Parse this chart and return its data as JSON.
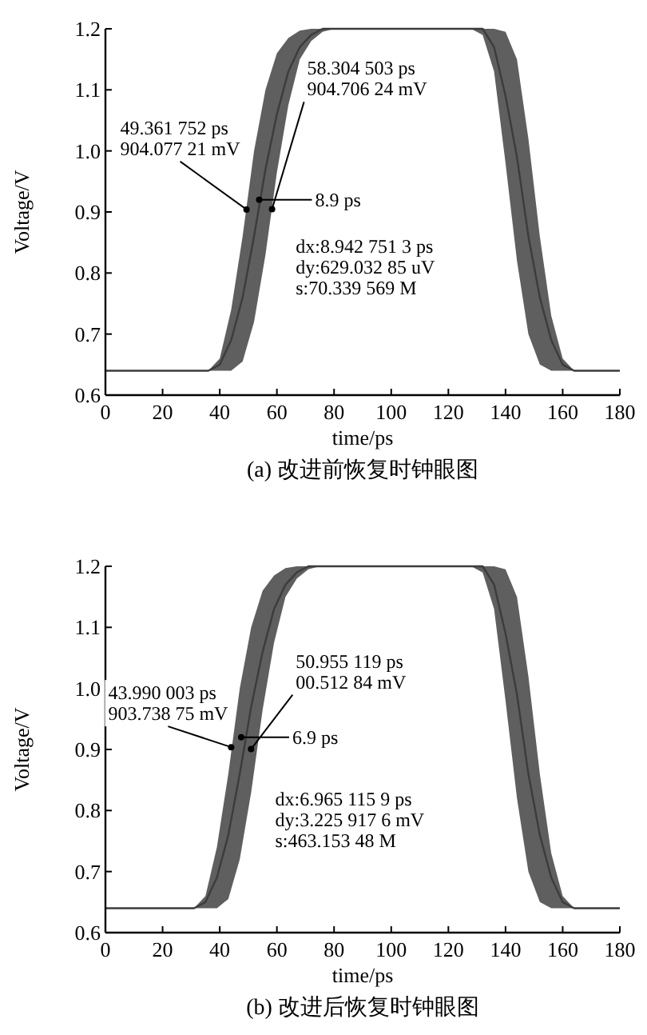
{
  "chart_data": [
    {
      "type": "line",
      "title": "(a) 改进前恢复时钟眼图",
      "xlabel": "time/ps",
      "ylabel": "Voltage/V",
      "xlim": [
        0,
        180
      ],
      "ylim": [
        0.6,
        1.2
      ],
      "xticks": [
        0,
        20,
        40,
        60,
        80,
        100,
        120,
        140,
        160,
        180
      ],
      "yticks": [
        0.6,
        0.7,
        0.8,
        0.9,
        {
          "value": 1,
          "label": "1.0"
        },
        1.1,
        1.2
      ],
      "series": [
        {
          "color": "#3c3c3c",
          "x": [
            0,
            36,
            40,
            44,
            48,
            52,
            56,
            60,
            64,
            68,
            72,
            76,
            80,
            128,
            132,
            136,
            140,
            144,
            148,
            152,
            156,
            160,
            164,
            180
          ],
          "values": [
            0.64,
            0.64,
            0.65,
            0.69,
            0.76,
            0.86,
            0.97,
            1.06,
            1.13,
            1.17,
            1.19,
            1.2,
            1.2,
            1.2,
            1.2,
            1.17,
            1.09,
            0.99,
            0.86,
            0.76,
            0.69,
            0.65,
            0.64,
            0.64
          ],
          "upper": [
            0.64,
            0.64,
            0.66,
            0.74,
            0.86,
            1.0,
            1.1,
            1.16,
            1.185,
            1.197,
            1.2,
            1.2,
            1.2,
            1.2,
            1.2,
            1.2,
            1.195,
            1.15,
            1.02,
            0.86,
            0.73,
            0.66,
            0.64,
            0.64
          ],
          "lower": [
            0.64,
            0.64,
            0.64,
            0.64,
            0.655,
            0.72,
            0.83,
            0.965,
            1.075,
            1.15,
            1.18,
            1.195,
            1.2,
            1.2,
            1.19,
            1.13,
            0.98,
            0.82,
            0.7,
            0.65,
            0.64,
            0.64,
            0.64,
            0.64
          ]
        }
      ],
      "annotations": [
        {
          "text": "58.304 503 ps\n904.706 24 mV",
          "x": 58.304503,
          "y": 0.90470624
        },
        {
          "text": "49.361 752 ps\n904.077 21 mV",
          "x": 49.361752,
          "y": 0.90407721
        },
        {
          "text": "8.9 ps",
          "x": 53.8,
          "y": 0.92
        },
        "dx:8.942 751 3 ps\ndy:629.032 85 uV\ns:70.339 569 M"
      ]
    },
    {
      "type": "line",
      "title": "(b) 改进后恢复时钟眼图",
      "xlabel": "time/ps",
      "ylabel": "Voltage/V",
      "xlim": [
        0,
        180
      ],
      "ylim": [
        0.6,
        1.2
      ],
      "xticks": [
        0,
        20,
        40,
        60,
        80,
        100,
        120,
        140,
        160,
        180
      ],
      "yticks": [
        0.6,
        0.7,
        0.8,
        0.9,
        {
          "value": 1,
          "label": "1.0"
        },
        1.1,
        1.2
      ],
      "series": [
        {
          "color": "#3c3c3c",
          "x": [
            0,
            31,
            35,
            39,
            43,
            47,
            51,
            55,
            59,
            63,
            67,
            71,
            75,
            128,
            132,
            136,
            140,
            144,
            148,
            152,
            156,
            160,
            164,
            180
          ],
          "values": [
            0.64,
            0.64,
            0.65,
            0.69,
            0.76,
            0.86,
            0.97,
            1.06,
            1.13,
            1.17,
            1.19,
            1.2,
            1.2,
            1.2,
            1.2,
            1.17,
            1.09,
            0.99,
            0.86,
            0.76,
            0.69,
            0.65,
            0.64,
            0.64
          ],
          "upper": [
            0.64,
            0.64,
            0.66,
            0.74,
            0.86,
            1.0,
            1.1,
            1.16,
            1.185,
            1.197,
            1.2,
            1.2,
            1.2,
            1.2,
            1.2,
            1.2,
            1.195,
            1.15,
            1.02,
            0.86,
            0.73,
            0.66,
            0.64,
            0.64
          ],
          "lower": [
            0.64,
            0.64,
            0.64,
            0.64,
            0.655,
            0.72,
            0.83,
            0.965,
            1.075,
            1.15,
            1.18,
            1.195,
            1.2,
            1.2,
            1.19,
            1.13,
            0.98,
            0.82,
            0.7,
            0.65,
            0.64,
            0.64,
            0.64,
            0.64
          ]
        }
      ],
      "annotations": [
        {
          "text": "50.955 119 ps\n00.512 84 mV",
          "x": 50.955119,
          "y": 0.9005
        },
        {
          "text": "43.990 003 ps\n903.738 75 mV",
          "x": 43.990003,
          "y": 0.90373875
        },
        {
          "text": "6.9 ps",
          "x": 47.5,
          "y": 0.92
        },
        "dx:6.965 115 9 ps\ndy:3.225 917 6 mV\ns:463.153 48 M"
      ]
    }
  ]
}
